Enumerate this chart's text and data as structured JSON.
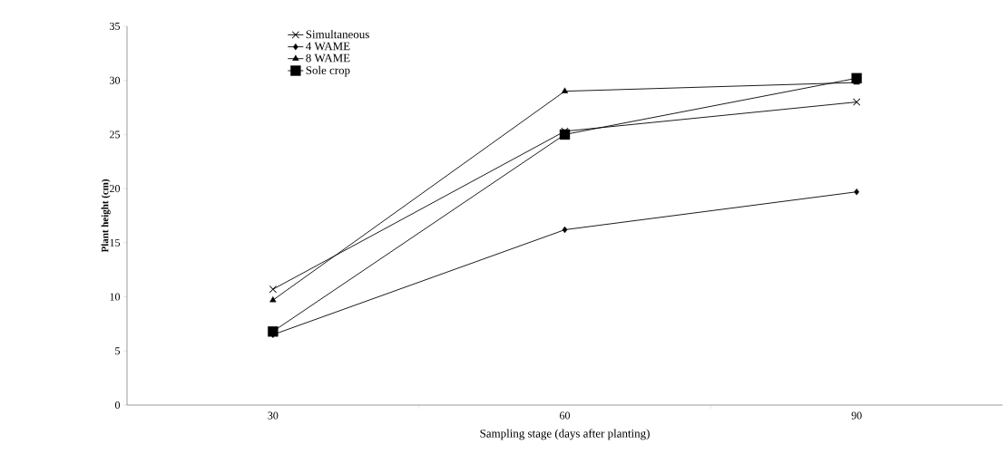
{
  "chart_data": {
    "type": "line",
    "xlabel": "Sampling stage (days after planting)",
    "ylabel": "Plant height (cm)",
    "categories": [
      "30",
      "60",
      "90"
    ],
    "series": [
      {
        "name": "Simultaneous",
        "color": "#000000",
        "marker": "cross",
        "values": [
          10.7,
          25.3,
          28.0
        ]
      },
      {
        "name": "4 WAME",
        "color": "#000000",
        "marker": "diamond",
        "values": [
          6.5,
          16.2,
          19.7
        ]
      },
      {
        "name": "8 WAME",
        "color": "#000000",
        "marker": "triangle",
        "values": [
          9.7,
          29.0,
          29.8
        ]
      },
      {
        "name": "Sole crop",
        "color": "#000000",
        "marker": "square",
        "values": [
          6.8,
          25.0,
          30.2
        ]
      }
    ],
    "ylim": [
      0,
      35
    ],
    "yticks": [
      0,
      5,
      10,
      15,
      20,
      25,
      30,
      35
    ],
    "grid": false,
    "legend": "top",
    "line_style": "solid"
  }
}
